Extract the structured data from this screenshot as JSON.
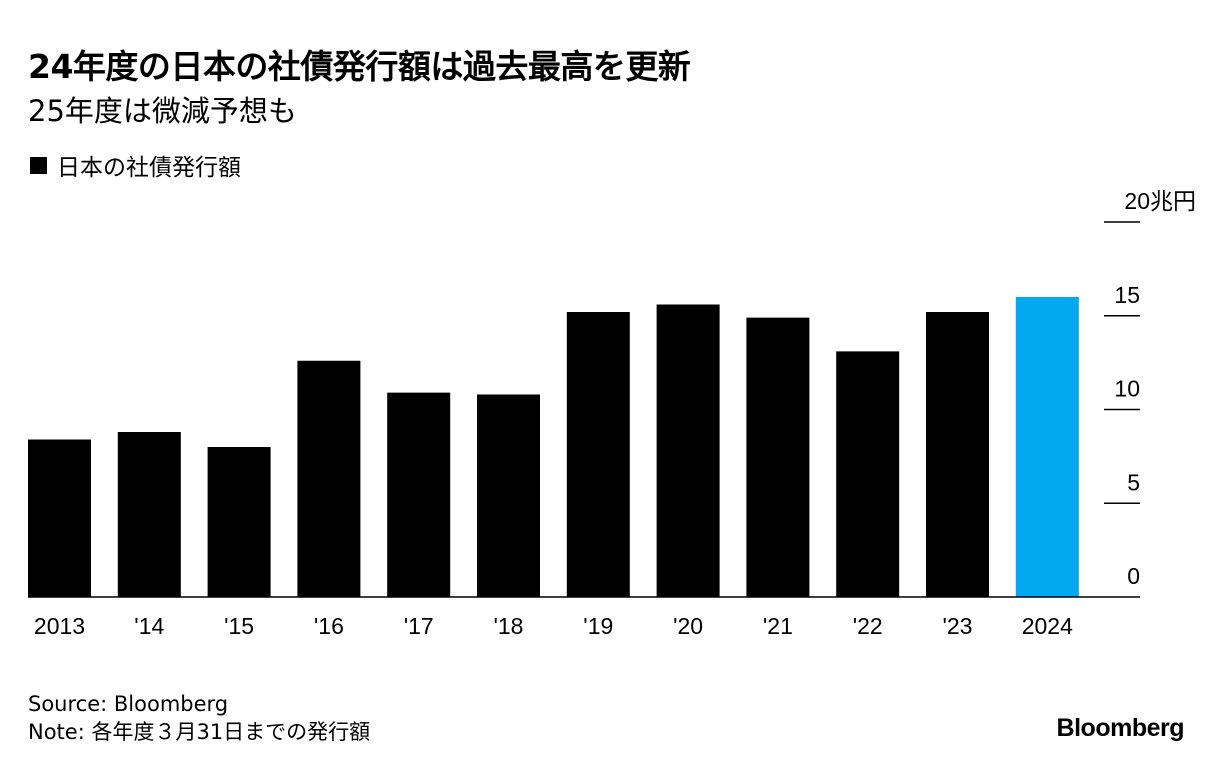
{
  "header": {
    "title": "24年度の日本の社債発行額は過去最高を更新",
    "subtitle": "25年度は微減予想も"
  },
  "legend": {
    "label": "日本の社債発行額"
  },
  "footer": {
    "source": "Source: Bloomberg",
    "note": "Note: 各年度３月31日までの発行額",
    "logo": "Bloomberg"
  },
  "colors": {
    "bar": "#000000",
    "highlight": "#00a8f0",
    "axis": "#000000"
  },
  "chart_data": {
    "type": "bar",
    "title": "24年度の日本の社債発行額は過去最高を更新",
    "subtitle": "25年度は微減予想も",
    "categories": [
      "2013",
      "'14",
      "'15",
      "'16",
      "'17",
      "'18",
      "'19",
      "'20",
      "'21",
      "'22",
      "'23",
      "2024"
    ],
    "series": [
      {
        "name": "日本の社債発行額",
        "values": [
          8.4,
          8.8,
          8.0,
          12.6,
          10.9,
          10.8,
          15.2,
          15.6,
          14.9,
          13.1,
          15.2,
          16.0
        ]
      }
    ],
    "highlight_index": 11,
    "ylim": [
      0,
      20
    ],
    "yticks": [
      0,
      5,
      10,
      15,
      20
    ],
    "ytick_labels": [
      "0",
      "5",
      "10",
      "15",
      "20兆円"
    ],
    "y_axis_position": "right",
    "grid": false,
    "legend_position": "top-left"
  }
}
